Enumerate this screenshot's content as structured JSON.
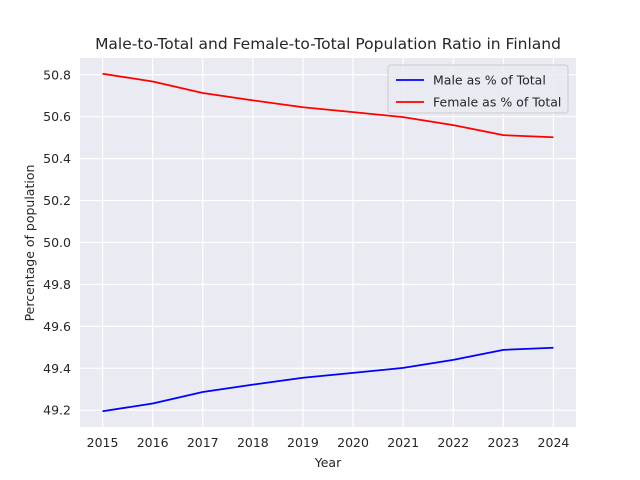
{
  "chart_data": {
    "type": "line",
    "title": "Male-to-Total and Female-to-Total Population Ratio in Finland",
    "xlabel": "Year",
    "ylabel": "Percentage of population",
    "x": [
      2015,
      2016,
      2017,
      2018,
      2019,
      2020,
      2021,
      2022,
      2023,
      2024
    ],
    "x_ticks": [
      "2015",
      "2016",
      "2017",
      "2018",
      "2019",
      "2020",
      "2021",
      "2022",
      "2023",
      "2024"
    ],
    "y_ticks": [
      "49.2",
      "49.4",
      "49.6",
      "49.8",
      "50.0",
      "50.2",
      "50.4",
      "50.6",
      "50.8"
    ],
    "ylim": [
      49.12,
      50.88
    ],
    "grid": true,
    "legend_position": "top-right",
    "series": [
      {
        "name": "Male as % of Total",
        "color": "#0000ff",
        "values": [
          49.195,
          49.232,
          49.287,
          49.322,
          49.355,
          49.378,
          49.402,
          49.44,
          49.488,
          49.498
        ]
      },
      {
        "name": "Female as % of Total",
        "color": "#ff0000",
        "values": [
          50.805,
          50.768,
          50.713,
          50.678,
          50.645,
          50.622,
          50.598,
          50.56,
          50.512,
          50.502
        ]
      }
    ]
  }
}
